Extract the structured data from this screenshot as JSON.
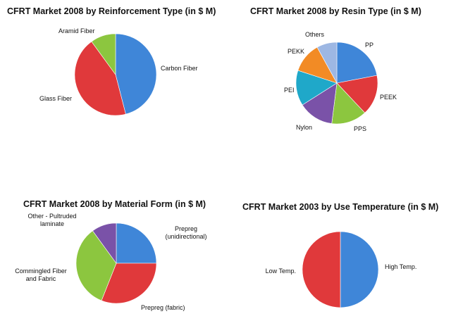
{
  "chart_data": [
    {
      "type": "pie",
      "title": "CFRT Market 2008 by Reinforcement Type (in $ M)",
      "slices": [
        {
          "label": "Carbon Fiber",
          "value": 46
        },
        {
          "label": "Glass Fiber",
          "value": 44
        },
        {
          "label": "Aramid Fiber",
          "value": 10
        }
      ],
      "colors": [
        "#3f86d8",
        "#e0393b",
        "#8cc63f"
      ]
    },
    {
      "type": "pie",
      "title": "CFRT Market 2008 by Resin Type (in $ M)",
      "slices": [
        {
          "label": "PP",
          "value": 22
        },
        {
          "label": "PEEK",
          "value": 16
        },
        {
          "label": "PPS",
          "value": 14
        },
        {
          "label": "Nylon",
          "value": 14
        },
        {
          "label": "PEI",
          "value": 14
        },
        {
          "label": "PEKK",
          "value": 12
        },
        {
          "label": "Others",
          "value": 8
        }
      ],
      "colors": [
        "#3f86d8",
        "#e0393b",
        "#8cc63f",
        "#7a52a8",
        "#1fa8c9",
        "#f28b25",
        "#9db7e3"
      ]
    },
    {
      "type": "pie",
      "title": "CFRT Market 2008 by Material Form (in $ M)",
      "slices": [
        {
          "label": "Prepreg (unidirectional)",
          "value": 25
        },
        {
          "label": "Prepreg (fabric)",
          "value": 31
        },
        {
          "label": "Commingled Fiber and Fabric",
          "value": 34
        },
        {
          "label": "Other - Pultruded laminate",
          "value": 10
        }
      ],
      "colors": [
        "#3f86d8",
        "#e0393b",
        "#8cc63f",
        "#7a52a8"
      ]
    },
    {
      "type": "pie",
      "title": "CFRT Market 2003 by Use Temperature (in $ M)",
      "slices": [
        {
          "label": "High Temp.",
          "value": 50
        },
        {
          "label": "Low Temp.",
          "value": 50
        }
      ],
      "colors": [
        "#3f86d8",
        "#e0393b"
      ]
    }
  ]
}
